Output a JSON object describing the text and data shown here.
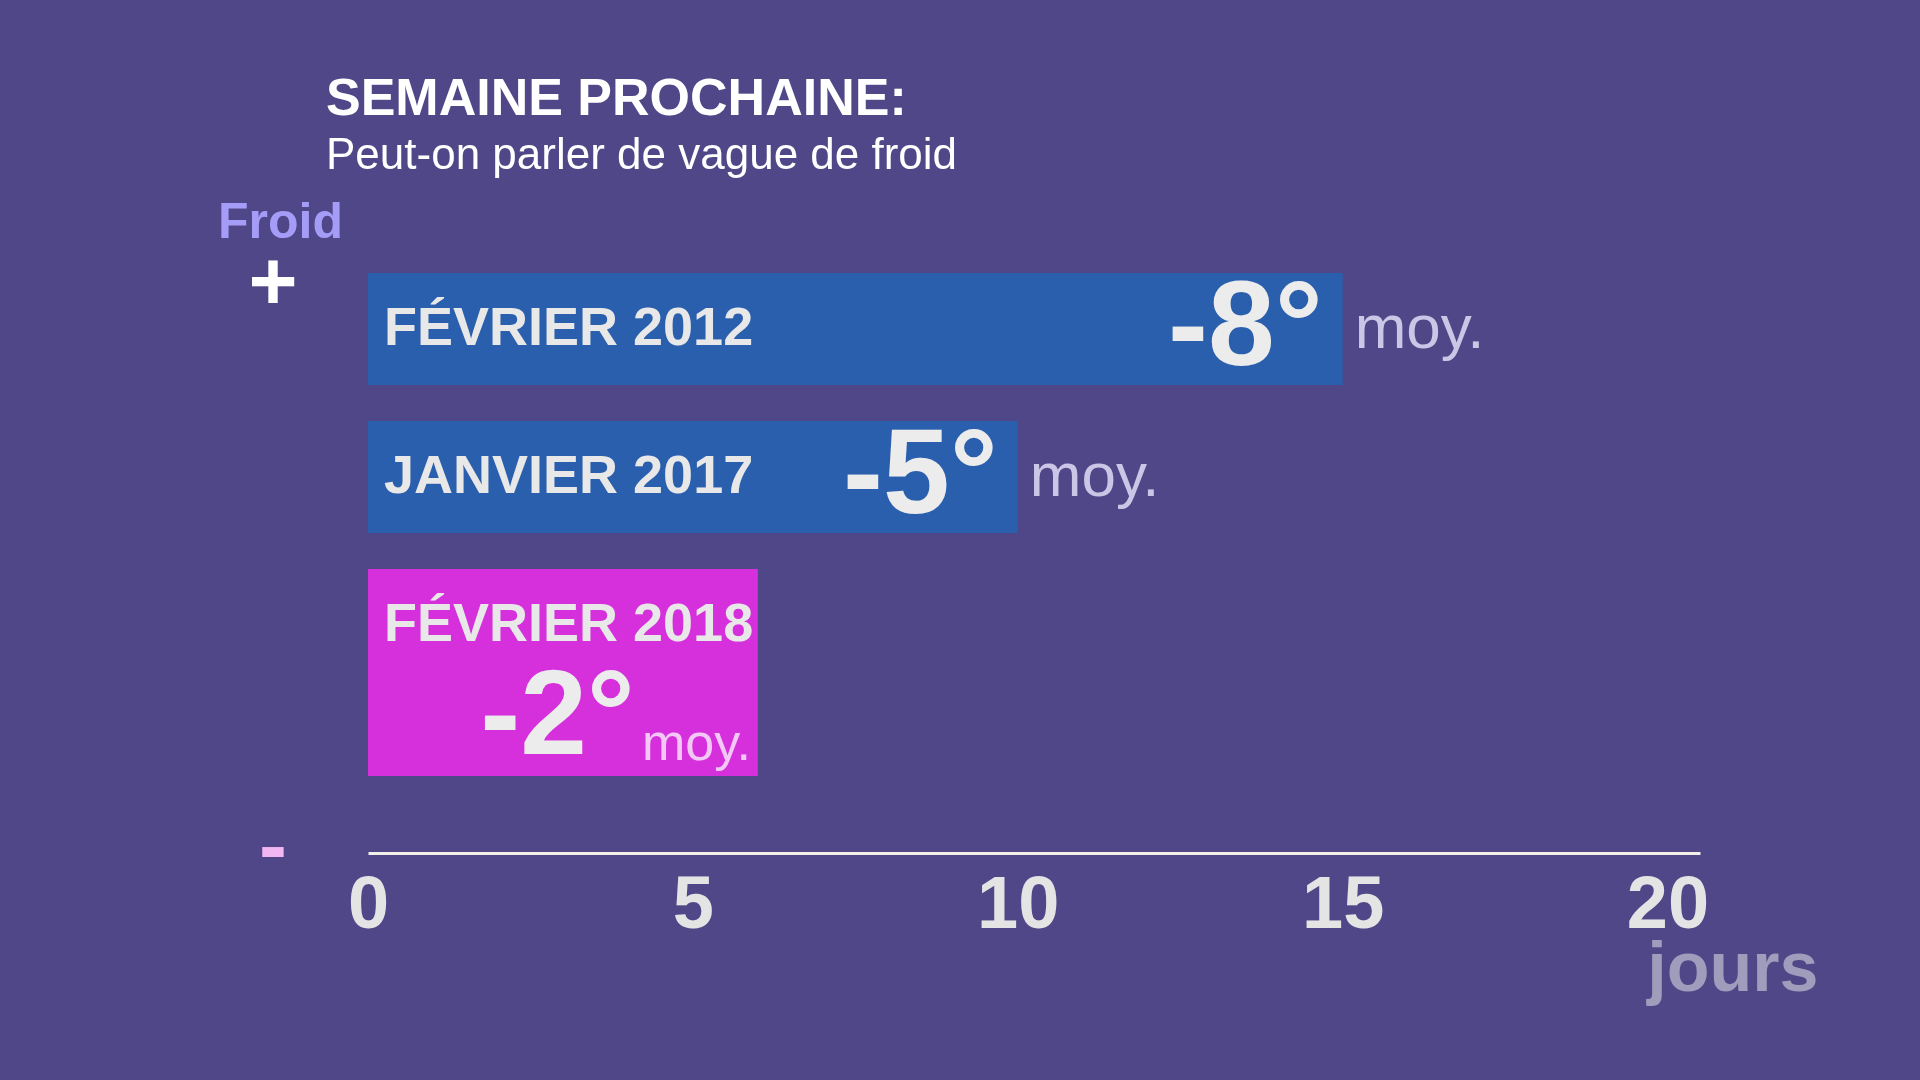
{
  "chart_data": {
    "type": "bar",
    "orientation": "horizontal",
    "title": "SEMAINE PROCHAINE:",
    "subtitle": "Peut-on parler de vague de froid",
    "xlabel": "jours",
    "ylabel": "Froid",
    "categories": [
      "FÉVRIER 2012",
      "JANVIER 2017",
      "FÉVRIER 2018"
    ],
    "values": [
      15,
      10,
      6
    ],
    "colors": [
      "#2a5fae",
      "#2a5fae",
      "#d62fdc"
    ],
    "xlim": [
      0,
      20.5
    ],
    "xticks": [
      0,
      5,
      10,
      15,
      20
    ],
    "annotations": [
      "+",
      "-",
      {
        "text": "-8°",
        "x": 15,
        "y": "FÉVRIER 2012"
      },
      {
        "text": "moy.",
        "x": 15,
        "y": "FÉVRIER 2012"
      },
      {
        "text": "-5°",
        "x": 10,
        "y": "JANVIER 2017"
      },
      {
        "text": "moy.",
        "x": 10,
        "y": "JANVIER 2017"
      },
      {
        "text": "-2°",
        "x": 6,
        "y": "FÉVRIER 2018"
      },
      {
        "text": "moy.",
        "x": 6,
        "y": "FÉVRIER 2018"
      }
    ]
  }
}
